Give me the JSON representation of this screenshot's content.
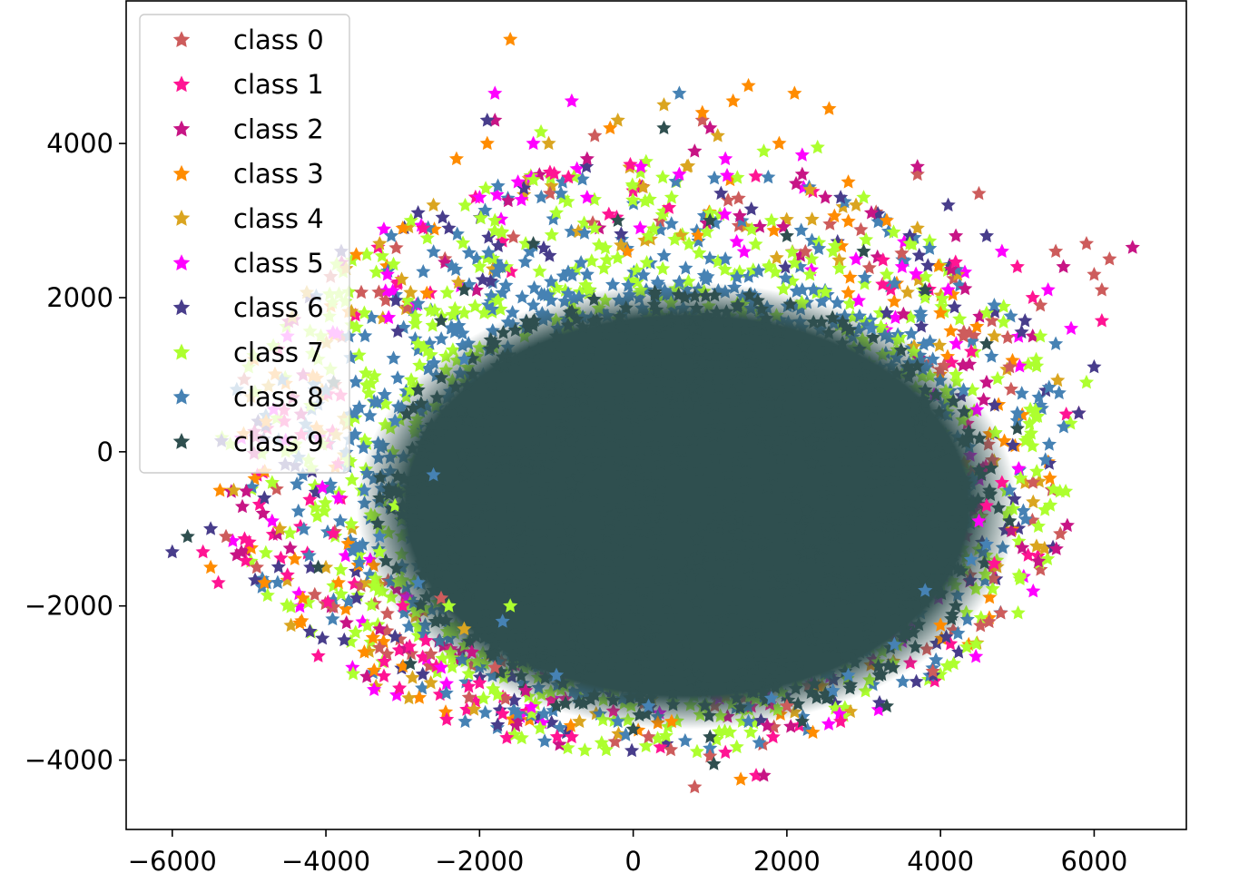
{
  "chart_data": {
    "type": "scatter",
    "title": "",
    "xlabel": "",
    "ylabel": "",
    "xlim": [
      -6600,
      7200
    ],
    "ylim": [
      -4900,
      5850
    ],
    "xticks": [
      -6000,
      -4000,
      -2000,
      0,
      2000,
      4000,
      6000
    ],
    "xtick_labels": [
      "−6000",
      "−4000",
      "−2000",
      "0",
      "2000",
      "4000",
      "6000"
    ],
    "yticks": [
      -4000,
      -2000,
      0,
      2000,
      4000
    ],
    "ytick_labels": [
      "−4000",
      "−2000",
      "0",
      "2000",
      "4000"
    ],
    "marker": "star",
    "grid": false,
    "legend_position": "upper-left",
    "series": [
      {
        "name": "class 0",
        "color": "#cd5c5c",
        "points": [
          [
            5500,
            2600
          ],
          [
            6200,
            2500
          ],
          [
            6000,
            2300
          ],
          [
            5300,
            1900
          ],
          [
            4500,
            3350
          ],
          [
            3700,
            3600
          ],
          [
            3900,
            -2850
          ],
          [
            800,
            -4350
          ],
          [
            1000,
            -3950
          ],
          [
            -3200,
            -2100
          ],
          [
            -1800,
            -2800
          ],
          [
            4900,
            1100
          ],
          [
            -5300,
            -1100
          ],
          [
            2000,
            -3300
          ],
          [
            5900,
            2700
          ],
          [
            -2500,
            -1900
          ],
          [
            -500,
            4100
          ],
          [
            6100,
            2100
          ],
          [
            4300,
            1500
          ],
          [
            900,
            4300
          ],
          [
            -4900,
            -1500
          ],
          [
            200,
            -3700
          ]
        ]
      },
      {
        "name": "class 1",
        "color": "#ff1493",
        "points": [
          [
            -5400,
            -1700
          ],
          [
            -4100,
            -2650
          ],
          [
            -2000,
            -3000
          ],
          [
            5800,
            500
          ],
          [
            4700,
            -1450
          ],
          [
            6100,
            1700
          ],
          [
            -1700,
            -3400
          ],
          [
            -800,
            -3700
          ],
          [
            1600,
            -4200
          ],
          [
            4600,
            -700
          ],
          [
            -2700,
            -2450
          ],
          [
            5200,
            2000
          ],
          [
            -5600,
            -1300
          ],
          [
            1200,
            -3900
          ],
          [
            4800,
            -400
          ],
          [
            -3000,
            -2000
          ],
          [
            2700,
            -3500
          ],
          [
            -4500,
            -1600
          ],
          [
            4400,
            1300
          ],
          [
            5000,
            2400
          ]
        ]
      },
      {
        "name": "class 2",
        "color": "#c71585",
        "points": [
          [
            -1800,
            4300
          ],
          [
            6500,
            2650
          ],
          [
            3700,
            3700
          ],
          [
            1700,
            -4200
          ],
          [
            2200,
            3600
          ],
          [
            1000,
            4200
          ],
          [
            -5100,
            -1300
          ],
          [
            4200,
            2800
          ],
          [
            5600,
            2400
          ],
          [
            -2100,
            -2600
          ],
          [
            3100,
            3100
          ],
          [
            -1400,
            -3100
          ],
          [
            4600,
            900
          ],
          [
            800,
            3900
          ],
          [
            -3300,
            -2300
          ],
          [
            5200,
            1500
          ],
          [
            -600,
            3800
          ],
          [
            2500,
            3300
          ]
        ]
      },
      {
        "name": "class 3",
        "color": "#ff8c00",
        "points": [
          [
            -1600,
            5350
          ],
          [
            1500,
            4750
          ],
          [
            2100,
            4650
          ],
          [
            2550,
            4450
          ],
          [
            1300,
            4550
          ],
          [
            -1900,
            4000
          ],
          [
            -4800,
            -1700
          ],
          [
            -3500,
            -2600
          ],
          [
            4000,
            -2250
          ],
          [
            1400,
            -4250
          ],
          [
            -300,
            4200
          ],
          [
            900,
            4400
          ],
          [
            1900,
            4000
          ],
          [
            -2300,
            3800
          ],
          [
            -5500,
            -1500
          ],
          [
            3300,
            3000
          ],
          [
            -4300,
            -1900
          ],
          [
            500,
            -3500
          ],
          [
            2800,
            3500
          ],
          [
            -3000,
            2900
          ]
        ]
      },
      {
        "name": "class 4",
        "color": "#daa520",
        "points": [
          [
            -200,
            4300
          ],
          [
            400,
            4500
          ],
          [
            -2600,
            3200
          ],
          [
            -5200,
            -500
          ],
          [
            -4000,
            -1500
          ],
          [
            2300,
            3400
          ],
          [
            1100,
            4100
          ],
          [
            -3300,
            2700
          ],
          [
            3700,
            2900
          ],
          [
            -4600,
            -1000
          ],
          [
            -1100,
            4000
          ],
          [
            700,
            3700
          ],
          [
            -2200,
            -2300
          ],
          [
            -700,
            -3500
          ],
          [
            2900,
            3200
          ],
          [
            4700,
            1500
          ]
        ]
      },
      {
        "name": "class 5",
        "color": "#ff00ff",
        "points": [
          [
            -1800,
            4650
          ],
          [
            -800,
            4550
          ],
          [
            -1300,
            4000
          ],
          [
            100,
            3700
          ],
          [
            2200,
            3850
          ],
          [
            5400,
            2100
          ],
          [
            4800,
            2600
          ],
          [
            -3200,
            2300
          ],
          [
            -1500,
            3500
          ],
          [
            3500,
            2400
          ],
          [
            1200,
            3800
          ],
          [
            -4700,
            -900
          ],
          [
            4100,
            2100
          ],
          [
            5700,
            1600
          ],
          [
            -2500,
            -2800
          ],
          [
            -600,
            3300
          ],
          [
            2900,
            2500
          ],
          [
            600,
            3600
          ],
          [
            -2000,
            3300
          ],
          [
            4500,
            -900
          ]
        ]
      },
      {
        "name": "class 6",
        "color": "#483d8b",
        "points": [
          [
            -6000,
            -1300
          ],
          [
            -3800,
            2600
          ],
          [
            -2800,
            3100
          ],
          [
            4100,
            3200
          ],
          [
            6000,
            1100
          ],
          [
            -3100,
            -2400
          ],
          [
            3600,
            2800
          ],
          [
            5800,
            500
          ],
          [
            -4800,
            -600
          ],
          [
            -1900,
            4300
          ],
          [
            -5500,
            -1000
          ],
          [
            2700,
            3300
          ],
          [
            -3600,
            -1900
          ],
          [
            4600,
            2800
          ],
          [
            -4200,
            -1500
          ],
          [
            -2400,
            2900
          ],
          [
            5100,
            1700
          ],
          [
            3300,
            1800
          ]
        ]
      },
      {
        "name": "class 7",
        "color": "#adff2f",
        "points": [
          [
            -1200,
            4150
          ],
          [
            1700,
            3900
          ],
          [
            2400,
            3950
          ],
          [
            5900,
            900
          ],
          [
            3000,
            3300
          ],
          [
            -4200,
            600
          ],
          [
            -3500,
            1800
          ],
          [
            -2800,
            1400
          ],
          [
            -1000,
            3100
          ],
          [
            500,
            3300
          ],
          [
            1800,
            3000
          ],
          [
            -4700,
            -400
          ],
          [
            -2000,
            2400
          ],
          [
            3800,
            2000
          ],
          [
            -3100,
            -700
          ],
          [
            -1400,
            2700
          ],
          [
            4600,
            1800
          ],
          [
            -3700,
            400
          ],
          [
            2600,
            2600
          ],
          [
            -2400,
            -2000
          ],
          [
            -500,
            2900
          ],
          [
            3300,
            2300
          ],
          [
            -1800,
            3000
          ],
          [
            -4100,
            1200
          ],
          [
            4200,
            1000
          ],
          [
            1000,
            3100
          ],
          [
            -3300,
            -1300
          ],
          [
            -2900,
            800
          ],
          [
            200,
            2800
          ],
          [
            -2200,
            1800
          ],
          [
            2300,
            2300
          ],
          [
            5300,
            1500
          ],
          [
            -4400,
            100
          ],
          [
            -1600,
            -2000
          ],
          [
            3600,
            2700
          ]
        ]
      },
      {
        "name": "class 8",
        "color": "#4682b4",
        "points": [
          [
            600,
            4650
          ],
          [
            -1500,
            -3400
          ],
          [
            4600,
            -1200
          ],
          [
            5500,
            1400
          ],
          [
            -4000,
            800
          ],
          [
            -3300,
            -1100
          ],
          [
            3400,
            -2500
          ],
          [
            -2600,
            -300
          ],
          [
            -1000,
            -2900
          ],
          [
            200,
            -3300
          ],
          [
            1800,
            -3200
          ],
          [
            3800,
            -1800
          ],
          [
            4300,
            800
          ],
          [
            -3100,
            400
          ],
          [
            2800,
            -2900
          ],
          [
            -2200,
            1200
          ],
          [
            4900,
            -500
          ],
          [
            -4300,
            -300
          ],
          [
            -1700,
            -2200
          ],
          [
            3100,
            1600
          ],
          [
            -600,
            2300
          ],
          [
            1200,
            2500
          ],
          [
            -3700,
            1500
          ],
          [
            2200,
            2100
          ],
          [
            4400,
            -1400
          ],
          [
            -2800,
            -1700
          ],
          [
            5000,
            500
          ],
          [
            -1300,
            1900
          ],
          [
            600,
            2200
          ],
          [
            3900,
            1200
          ],
          [
            2600,
            -3100
          ],
          [
            -3500,
            -500
          ],
          [
            1500,
            -3500
          ],
          [
            -200,
            -3500
          ],
          [
            4700,
            1900
          ]
        ]
      },
      {
        "name": "class 9",
        "color": "#2f4f4f",
        "points": [
          [
            400,
            4200
          ],
          [
            -2900,
            -2750
          ],
          [
            1050,
            -4050
          ],
          [
            3300,
            -3300
          ],
          [
            -5800,
            -1100
          ],
          [
            -4100,
            -1500
          ],
          [
            -3900,
            900
          ],
          [
            -3300,
            -600
          ],
          [
            -2500,
            1700
          ],
          [
            -1800,
            -2500
          ],
          [
            -1000,
            -3300
          ],
          [
            0,
            -3600
          ],
          [
            1000,
            -3700
          ],
          [
            2200,
            -3500
          ],
          [
            3200,
            -2900
          ],
          [
            4200,
            -2000
          ],
          [
            4900,
            -900
          ],
          [
            5000,
            300
          ],
          [
            4600,
            1400
          ],
          [
            3800,
            2100
          ],
          [
            3000,
            2600
          ],
          [
            2000,
            2800
          ],
          [
            1000,
            3000
          ],
          [
            -200,
            3000
          ],
          [
            -1300,
            2700
          ],
          [
            -2200,
            2100
          ],
          [
            -2800,
            800
          ],
          [
            -3000,
            -700
          ],
          [
            -2600,
            -1800
          ],
          [
            -1500,
            -1000
          ],
          [
            -500,
            0
          ],
          [
            500,
            1000
          ],
          [
            1500,
            -1500
          ],
          [
            2500,
            500
          ],
          [
            -1000,
            1500
          ],
          [
            3500,
            -1000
          ]
        ]
      }
    ]
  }
}
